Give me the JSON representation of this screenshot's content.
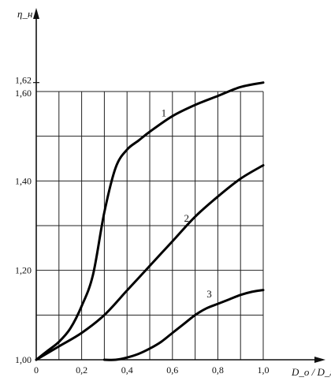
{
  "chart_data": {
    "type": "line",
    "ylabel": "η_н",
    "xlabel": "D_o / D_м",
    "xlim": [
      0,
      1.0
    ],
    "ylim": [
      1.0,
      1.62
    ],
    "grid": true,
    "x_ticks": [
      "0",
      "0,2",
      "0,4",
      "0,6",
      "0,8",
      "1,0"
    ],
    "y_ticks": [
      "1,00",
      "1,20",
      "1,40",
      "1,60",
      "1,62"
    ],
    "series": [
      {
        "name": "1",
        "x": [
          0,
          0.05,
          0.1,
          0.15,
          0.2,
          0.25,
          0.3,
          0.35,
          0.4,
          0.45,
          0.5,
          0.6,
          0.7,
          0.8,
          0.9,
          1.0
        ],
        "y": [
          1.0,
          1.02,
          1.04,
          1.07,
          1.12,
          1.19,
          1.33,
          1.43,
          1.47,
          1.49,
          1.51,
          1.545,
          1.57,
          1.59,
          1.61,
          1.62
        ]
      },
      {
        "name": "2",
        "x": [
          0,
          0.1,
          0.2,
          0.3,
          0.4,
          0.5,
          0.6,
          0.7,
          0.8,
          0.9,
          1.0
        ],
        "y": [
          1.0,
          1.03,
          1.06,
          1.1,
          1.155,
          1.21,
          1.265,
          1.32,
          1.365,
          1.405,
          1.435
        ]
      },
      {
        "name": "3",
        "x": [
          0.3,
          0.35,
          0.4,
          0.45,
          0.5,
          0.55,
          0.6,
          0.65,
          0.7,
          0.75,
          0.8,
          0.85,
          0.9,
          0.95,
          1.0
        ],
        "y": [
          1.0,
          1.0,
          1.005,
          1.013,
          1.025,
          1.04,
          1.06,
          1.08,
          1.1,
          1.115,
          1.125,
          1.135,
          1.145,
          1.152,
          1.156
        ]
      }
    ],
    "labels": [
      {
        "text": "1",
        "x": 0.53,
        "y": 1.53
      },
      {
        "text": "2",
        "x": 0.63,
        "y": 1.295
      },
      {
        "text": "3",
        "x": 0.73,
        "y": 1.125
      }
    ]
  }
}
